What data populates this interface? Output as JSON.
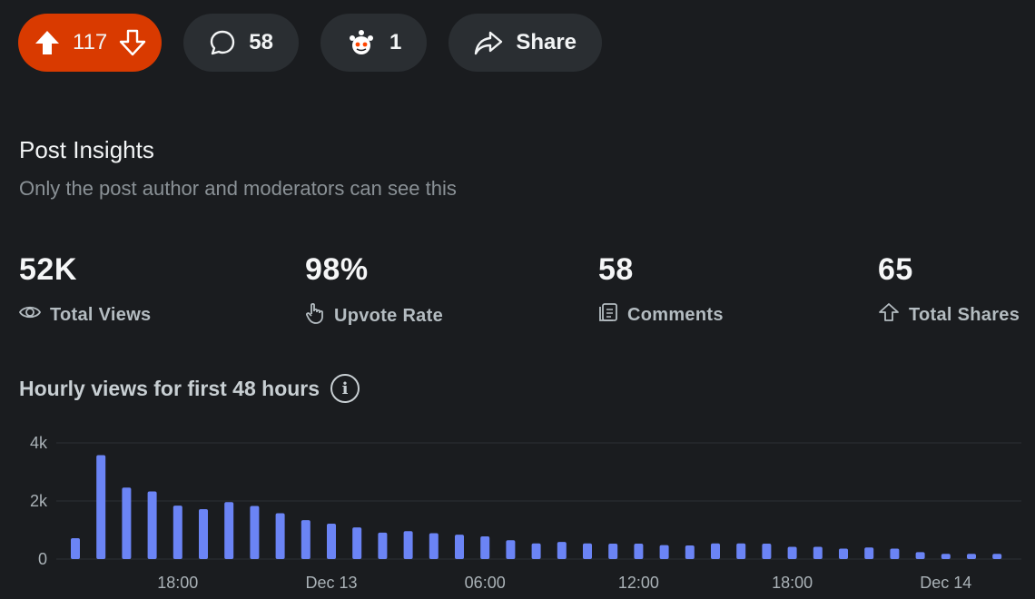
{
  "actions": {
    "vote_count": "117",
    "comment_count": "58",
    "award_count": "1",
    "share_label": "Share",
    "vote_color": "#d93a00"
  },
  "insights": {
    "title": "Post Insights",
    "subtitle": "Only the post author and moderators can see this",
    "stats": [
      {
        "value": "52K",
        "label": "Total Views",
        "icon": "eye-icon"
      },
      {
        "value": "98%",
        "label": "Upvote Rate",
        "icon": "hand-pointer-icon"
      },
      {
        "value": "58",
        "label": "Comments",
        "icon": "comments-doc-icon"
      },
      {
        "value": "65",
        "label": "Total Shares",
        "icon": "share-arrow-icon"
      }
    ]
  },
  "chart_title": "Hourly views for first 48 hours",
  "chart_data": {
    "type": "bar",
    "title": "Hourly views for first 48 hours",
    "ylim": [
      0,
      4000
    ],
    "y_ticks": [
      "0",
      "2k",
      "4k"
    ],
    "x_tick_labels": [
      "18:00",
      "Dec 13",
      "06:00",
      "12:00",
      "18:00",
      "Dec 14"
    ],
    "bar_color": "#6b84f5",
    "grid": true,
    "values": [
      720,
      3580,
      2460,
      2330,
      1840,
      1720,
      1960,
      1830,
      1580,
      1340,
      1220,
      1090,
      910,
      960,
      890,
      840,
      780,
      650,
      540,
      590,
      540,
      530,
      530,
      480,
      470,
      540,
      540,
      530,
      420,
      420,
      360,
      400,
      360,
      240,
      180,
      180,
      180
    ]
  }
}
